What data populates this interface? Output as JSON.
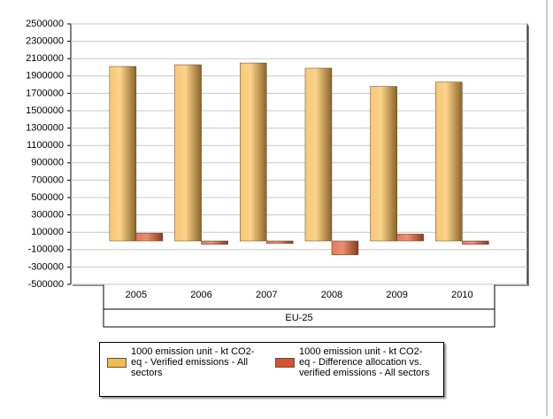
{
  "chart_data": {
    "type": "bar",
    "categories": [
      "2005",
      "2006",
      "2007",
      "2008",
      "2009",
      "2010"
    ],
    "group_label": "EU-25",
    "series": [
      {
        "name": "1000 emission unit - kt CO2-eq - Verified emissions - All sectors",
        "color": "#f5b94e",
        "values": [
          2010000,
          2030000,
          2050000,
          1990000,
          1780000,
          1830000
        ]
      },
      {
        "name": "1000 emission unit - kt CO2-eq - Difference allocation vs. verified emissions - All sectors",
        "color": "#d9512c",
        "values": [
          90000,
          -40000,
          -30000,
          -160000,
          80000,
          -40000
        ]
      }
    ],
    "ylim": [
      -500000,
      2500000
    ],
    "yticks": [
      -500000,
      -300000,
      -100000,
      100000,
      300000,
      500000,
      700000,
      900000,
      1100000,
      1300000,
      1500000,
      1700000,
      1900000,
      2100000,
      2300000,
      2500000
    ],
    "grid": true
  }
}
